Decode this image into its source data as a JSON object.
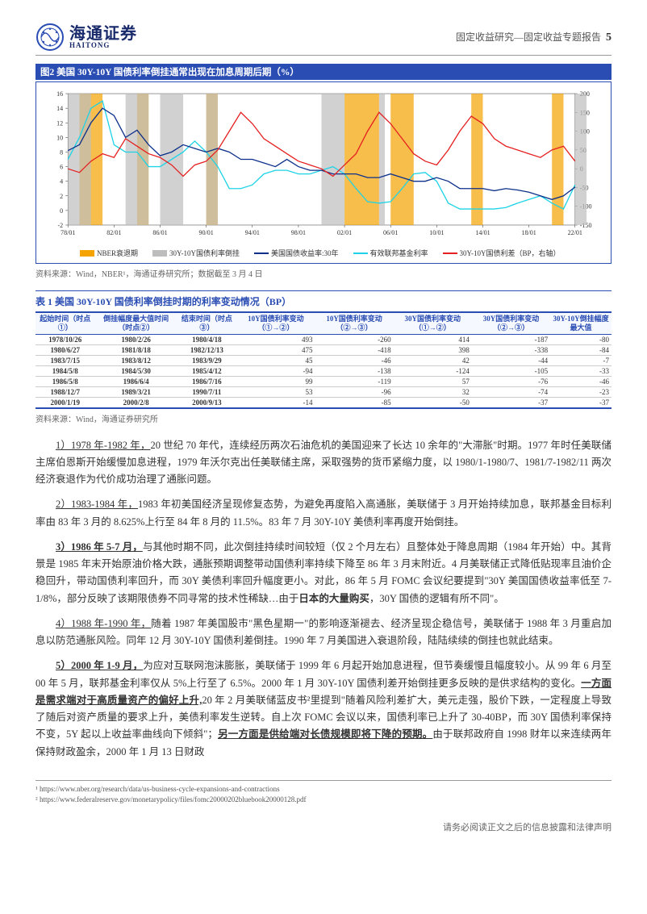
{
  "header": {
    "logo_cn": "海通证券",
    "logo_en": "HAITONG",
    "right_text": "固定收益研究—固定收益专题报告",
    "page_num": "5"
  },
  "fig2": {
    "title": "图2  美国 30Y-10Y 国债利率倒挂通常出现在加息周期后期（%）",
    "type": "line-dual-axis",
    "x_labels": [
      "78/01",
      "82/01",
      "86/01",
      "90/01",
      "94/01",
      "98/01",
      "02/01",
      "06/01",
      "10/01",
      "14/01",
      "18/01",
      "22/01"
    ],
    "left_axis": {
      "min": -2,
      "max": 16,
      "step": 2,
      "color": "#333"
    },
    "right_axis": {
      "min": -150,
      "max": 200,
      "step": 50,
      "color": "#333"
    },
    "plot_bg": "#ffffff",
    "gridline_color": "#000000",
    "colors": {
      "nber": "#f4a300",
      "inversion": "#bdbdbd",
      "us30y": "#0b2f8a",
      "fedfunds": "#1ed3e6",
      "spread": "#e52020"
    },
    "nber_bands": [
      [
        1,
        3
      ],
      [
        6,
        7
      ],
      [
        12,
        13
      ],
      [
        24,
        27
      ],
      [
        28,
        30
      ],
      [
        35,
        36
      ],
      [
        42,
        43
      ]
    ],
    "inv_bands": [
      [
        0,
        2
      ],
      [
        5,
        7
      ],
      [
        8,
        10
      ],
      [
        12,
        13
      ],
      [
        22,
        24
      ],
      [
        27,
        27.5
      ],
      [
        44,
        45
      ]
    ],
    "us30y": [
      8.2,
      9,
      12,
      14,
      13,
      10,
      11,
      9,
      7.5,
      8,
      9,
      8.5,
      8,
      8.5,
      8,
      7,
      7,
      6.5,
      6,
      7,
      6,
      5.5,
      5.5,
      5,
      5,
      5,
      4.5,
      4.5,
      5,
      4.5,
      4,
      4,
      4.5,
      4,
      3,
      3,
      3,
      2.7,
      3,
      2.8,
      2.5,
      2,
      1.5,
      2,
      3.2
    ],
    "fedfunds": [
      7,
      10,
      14,
      15,
      9,
      8,
      8,
      6,
      6,
      7,
      8,
      9.5,
      8,
      6,
      3,
      3,
      3.5,
      5,
      5.5,
      5.5,
      5,
      5,
      5.5,
      6,
      5,
      3,
      1.2,
      1,
      1.2,
      3,
      5,
      5.2,
      4,
      1,
      0.2,
      0.2,
      0.2,
      0.2,
      0.4,
      1,
      1.5,
      2,
      1,
      0.2,
      3.5
    ],
    "spread": [
      0,
      -10,
      20,
      40,
      30,
      80,
      60,
      40,
      30,
      10,
      -20,
      10,
      20,
      50,
      100,
      150,
      120,
      80,
      60,
      40,
      20,
      10,
      0,
      -20,
      10,
      40,
      100,
      150,
      120,
      80,
      40,
      20,
      10,
      50,
      100,
      140,
      120,
      80,
      60,
      50,
      40,
      30,
      50,
      60,
      20
    ],
    "legend": {
      "nber": "NBER衰退期",
      "inversion": "30Y-10Y国债利率倒挂",
      "us30y": "美国国债收益率:30年",
      "fedfunds": "有效联邦基金利率",
      "spread": "30Y-10Y国债利差（BP，右轴）"
    },
    "src": "资料来源：Wind，NBER¹，海通证券研究所；数据截至 3 月 4 日"
  },
  "table1": {
    "title": "表 1 美国 30Y-10Y 国债利率倒挂时期的利率变动情况（BP）",
    "columns": [
      "起始时间（时点①）",
      "倒挂幅度最大值时间（时点②）",
      "结束时间（时点③）",
      "10Y国债利率变动（①→②）",
      "10Y国债利率变动（②→③）",
      "30Y国债利率变动（①→②）",
      "30Y国债利率变动（②→③）",
      "30Y-10Y倒挂幅度最大值"
    ],
    "rows": [
      [
        "1978/10/26",
        "1980/2/26",
        "1980/4/18",
        "493",
        "-260",
        "414",
        "-187",
        "-80"
      ],
      [
        "1980/6/27",
        "1981/8/18",
        "1982/12/13",
        "475",
        "-418",
        "398",
        "-338",
        "-84"
      ],
      [
        "1983/7/15",
        "1983/8/12",
        "1983/9/29",
        "45",
        "-46",
        "42",
        "-44",
        "-7"
      ],
      [
        "1984/5/8",
        "1984/5/30",
        "1985/4/12",
        "-94",
        "-138",
        "-124",
        "-105",
        "-33"
      ],
      [
        "1986/5/8",
        "1986/6/4",
        "1986/7/16",
        "99",
        "-119",
        "57",
        "-76",
        "-46"
      ],
      [
        "1988/12/7",
        "1989/3/21",
        "1990/7/11",
        "53",
        "-96",
        "32",
        "-74",
        "-23"
      ],
      [
        "2000/1/19",
        "2000/2/8",
        "2000/9/13",
        "-14",
        "-85",
        "-50",
        "-37",
        "-37"
      ]
    ],
    "src": "资料来源：Wind，海通证券研究所"
  },
  "paras": {
    "p1_lead": "1）1978 年-1982 年，",
    "p1": "20 世纪 70 年代，连续经历两次石油危机的美国迎来了长达 10 余年的\"大滞胀\"时期。1977 年时任美联储主席伯恩斯开始缓慢加息进程，1979 年沃尔克出任美联储主席，采取强势的货币紧缩力度，以 1980/1-1980/7、1981/7-1982/11 两次经济衰退作为代价成功治理了通胀问题。",
    "p2_lead": "2）1983-1984 年，",
    "p2": "1983 年初美国经济呈现修复态势，为避免再度陷入高通胀，美联储于 3 月开始持续加息，联邦基金目标利率由 83 年 3 月的 8.625%上行至 84 年 8 月的 11.5%。83 年 7 月 30Y-10Y 美债利率再度开始倒挂。",
    "p3_lead": "3）1986 年 5-7 月，",
    "p3a": "与其他时期不同，此次倒挂持续时间较短（仅 2 个月左右）且整体处于降息周期（1984 年开始）中。其背景是 1985 年末开始原油价格大跌，通胀预期调整带动国债利率持续下降至 86 年 3 月末附近。4 月美联储正式降低贴现率且油价企稳回升，带动国债利率回升，而 30Y 美债利率回升幅度更小。对此，86 年 5 月 FOMC 会议纪要提到\"30Y 美国国债收益率低至 7-1/8%，部分反映了该期限债券不同寻常的技术性稀缺…由于",
    "p3_bold": "日本的大量购买",
    "p3b": "，30Y 国债的逻辑有所不同\"。",
    "p4_lead": "4）1988 年-1990 年，",
    "p4": "随着 1987 年美国股市\"黑色星期一\"的影响逐渐褪去、经济呈现企稳信号，美联储于 1988 年 3 月重启加息以防范通胀风险。同年 12 月 30Y-10Y 国债利差倒挂。1990 年 7 月美国进入衰退阶段，陆陆续续的倒挂也就此结束。",
    "p5_lead": "5）2000 年 1-9 月，",
    "p5a": "为应对互联网泡沫膨胀，美联储于 1999 年 6 月起开始加息进程，但节奏缓慢且幅度较小。从 99 年 6 月至 00 年 5 月，联邦基金利率仅从 5%上行至了 6.5%。2000 年 1 月 30Y-10Y 国债利差开始倒挂更多反映的是供求结构的变化。",
    "p5_u1": "一方面是需求端对于高质量资产的偏好上升,",
    "p5b": "20 年 2 月美联储蓝皮书²里提到\"随着风险利差扩大，美元走强，股价下跌，一定程度上导致了随后对资产质量的要求上升，美债利率发生逆转。自上次 FOMC 会议以来，国债利率已上升了 30-40BP，而 30Y 国债利率保持不变，5Y 起以上收益率曲线向下倾斜\"；",
    "p5_u2": "另一方面是供给端对长债规模即将下降的预期。",
    "p5c": "由于联邦政府自 1998 财年以来连续两年保持财政盈余，2000 年 1 月 13 日财政"
  },
  "footnotes": {
    "f1": "¹ https://www.nber.org/research/data/us-business-cycle-expansions-and-contractions",
    "f2": "² https://www.federalreserve.gov/monetarypolicy/files/fomc20000202bluebook20000128.pdf"
  },
  "footer": "请务必阅读正文之后的信息披露和法律声明"
}
